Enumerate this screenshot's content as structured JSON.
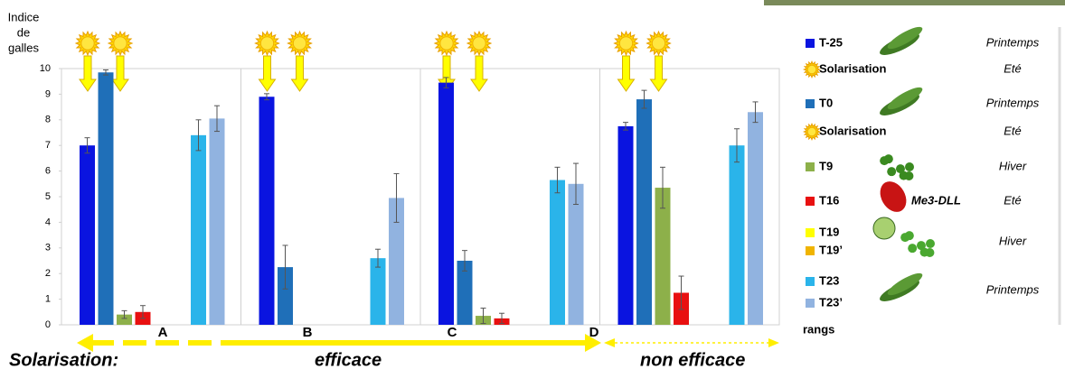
{
  "chart_data": {
    "type": "bar",
    "ylabel": [
      "Indice",
      "de",
      "galles"
    ],
    "categories": [
      "A",
      "B",
      "C",
      "D"
    ],
    "ylim": [
      0,
      10
    ],
    "yticks": [
      0,
      1,
      2,
      3,
      4,
      5,
      6,
      7,
      8,
      9,
      10
    ],
    "series": [
      {
        "name": "T-25",
        "color": "#0a14e0",
        "values": [
          7.0,
          8.9,
          9.45,
          7.75
        ],
        "errors": [
          0.3,
          0.12,
          0.2,
          0.15
        ]
      },
      {
        "name": "T0",
        "color": "#1f6fb8",
        "values": [
          9.85,
          2.25,
          2.5,
          8.8
        ],
        "errors": [
          0.1,
          0.85,
          0.4,
          0.35
        ]
      },
      {
        "name": "T9",
        "color": "#8db04a",
        "values": [
          0.4,
          null,
          0.35,
          5.35
        ],
        "errors": [
          0.15,
          null,
          0.3,
          0.8
        ]
      },
      {
        "name": "T16",
        "color": "#e81010",
        "values": [
          0.5,
          null,
          0.25,
          1.25
        ],
        "errors": [
          0.25,
          null,
          0.2,
          0.65
        ]
      },
      {
        "name": "T19",
        "color": "#ffff00",
        "values": [
          null,
          null,
          null,
          null
        ],
        "errors": [
          null,
          null,
          null,
          null
        ]
      },
      {
        "name": "T19’",
        "color": "#f0b400",
        "values": [
          null,
          null,
          null,
          null
        ],
        "errors": [
          null,
          null,
          null,
          null
        ]
      },
      {
        "name": "T23",
        "color": "#2ab4ea",
        "values": [
          7.4,
          2.6,
          5.65,
          7.0
        ],
        "errors": [
          0.6,
          0.35,
          0.5,
          0.65
        ]
      },
      {
        "name": "T23’",
        "color": "#91b3e0",
        "values": [
          8.05,
          4.95,
          5.5,
          8.3
        ],
        "errors": [
          0.5,
          0.95,
          0.8,
          0.4
        ]
      }
    ],
    "legend_solarisation": [
      "Solarisation",
      "Solarisation"
    ],
    "legend_seasons": [
      "Printemps",
      "Eté",
      "Printemps",
      "Eté",
      "Hiver",
      "Eté",
      "Hiver",
      "Printemps"
    ],
    "host_label": "Me3-DLL",
    "xlabel": "rangs"
  },
  "footer": [
    "Solarisation:",
    "efficace",
    "non efficace"
  ]
}
